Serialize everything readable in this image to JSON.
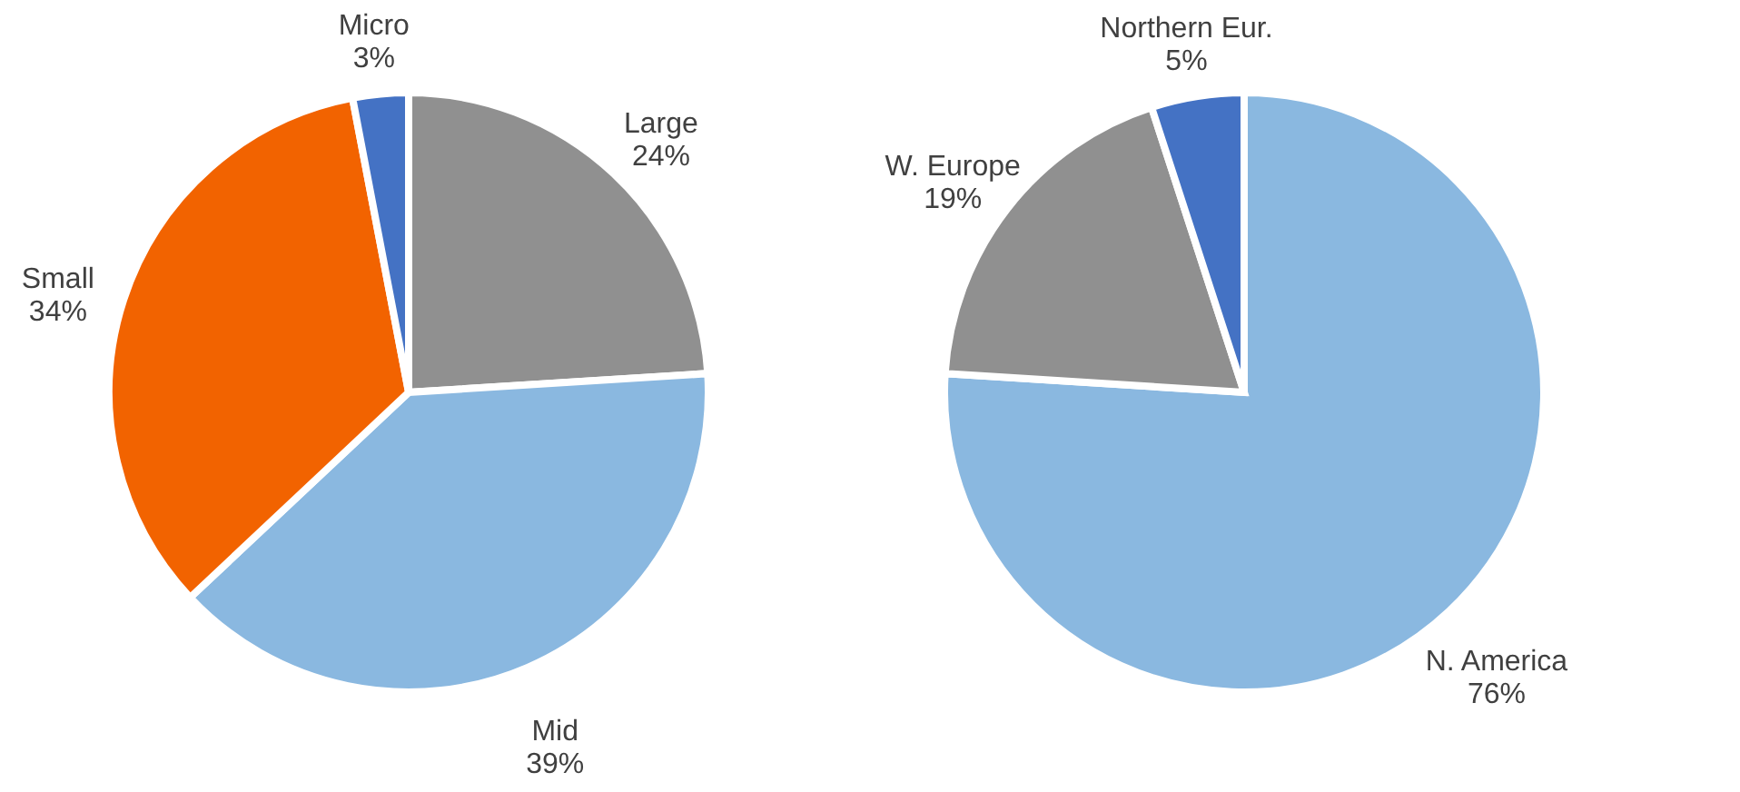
{
  "chart_data": [
    {
      "type": "pie",
      "categories": [
        "Large",
        "Mid",
        "Small",
        "Micro"
      ],
      "values": [
        24,
        39,
        34,
        3
      ],
      "value_labels": [
        "24%",
        "39%",
        "34%",
        "3%"
      ],
      "colors": [
        "#909090",
        "#8ab8e0",
        "#f26300",
        "#4472c4"
      ],
      "legend": false
    },
    {
      "type": "pie",
      "categories": [
        "N. America",
        "W. Europe",
        "Northern Eur."
      ],
      "values": [
        76,
        19,
        5
      ],
      "value_labels": [
        "76%",
        "19%",
        "5%"
      ],
      "colors": [
        "#8ab8e0",
        "#909090",
        "#4472c4"
      ],
      "legend": false
    }
  ]
}
